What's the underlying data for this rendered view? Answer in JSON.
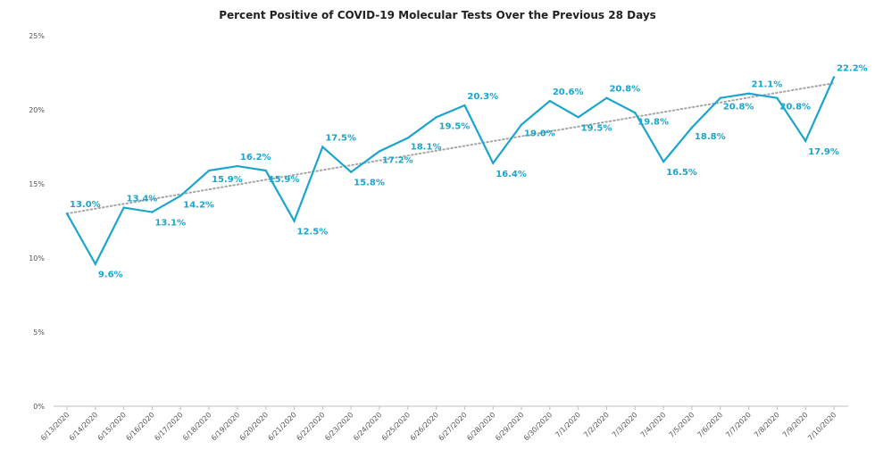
{
  "chart_data": {
    "type": "line",
    "title": "Percent Positive of COVID-19 Molecular Tests Over the Previous 28 Days",
    "xlabel": "",
    "ylabel": "",
    "ylim": [
      0,
      25
    ],
    "y_ticks": [
      0,
      5,
      10,
      15,
      20,
      25
    ],
    "y_tick_labels": [
      "0%",
      "5%",
      "10%",
      "15%",
      "20%",
      "25%"
    ],
    "grid": false,
    "legend": "none",
    "categories": [
      "6/13/2020",
      "6/14/2020",
      "6/15/2020",
      "6/16/2020",
      "6/17/2020",
      "6/18/2020",
      "6/19/2020",
      "6/20/2020",
      "6/21/2020",
      "6/22/2020",
      "6/23/2020",
      "6/24/2020",
      "6/25/2020",
      "6/26/2020",
      "6/27/2020",
      "6/28/2020",
      "6/29/2020",
      "6/30/2020",
      "7/1/2020",
      "7/2/2020",
      "7/3/2020",
      "7/4/2020",
      "7/5/2020",
      "7/6/2020",
      "7/7/2020",
      "7/8/2020",
      "7/9/2020",
      "7/10/2020"
    ],
    "series": [
      {
        "name": "Percent Positive",
        "color": "#1BA5CD",
        "values": [
          13.0,
          9.6,
          13.4,
          13.1,
          14.2,
          15.9,
          16.2,
          15.9,
          12.5,
          17.5,
          15.8,
          17.2,
          18.1,
          19.5,
          20.3,
          16.4,
          19.0,
          20.6,
          19.5,
          20.8,
          19.8,
          16.5,
          18.8,
          20.8,
          21.1,
          20.8,
          17.9,
          22.2
        ],
        "labels": [
          "13.0%",
          "9.6%",
          "13.4%",
          "13.1%",
          "14.2%",
          "15.9%",
          "16.2%",
          "15.9%",
          "12.5%",
          "17.5%",
          "15.8%",
          "17.2%",
          "18.1%",
          "19.5%",
          "20.3%",
          "16.4%",
          "19.0%",
          "20.6%",
          "19.5%",
          "20.8%",
          "19.8%",
          "16.5%",
          "18.8%",
          "20.8%",
          "21.1%",
          "20.8%",
          "17.9%",
          "22.2%"
        ]
      }
    ],
    "trendline": {
      "type": "linear",
      "style": "dotted",
      "color": "#A6A6A6",
      "start": 13.0,
      "end": 21.8
    }
  }
}
